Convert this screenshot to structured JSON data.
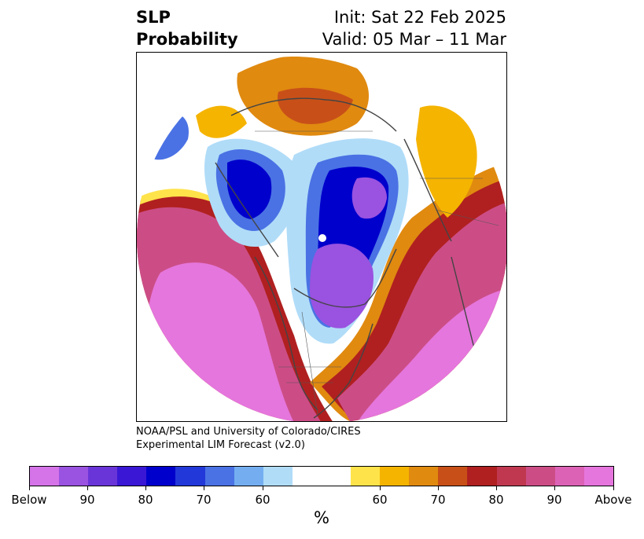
{
  "header": {
    "title_line1": "SLP",
    "title_line2": "Probability",
    "init": "Init: Sat 22 Feb 2025",
    "valid": "Valid: 05 Mar – 11 Mar"
  },
  "credit": {
    "line1": "NOAA/PSL and University of Colorado/CIRES",
    "line2": "Experimental LIM Forecast (v2.0)"
  },
  "colorbar": {
    "unit": "%",
    "colors": [
      "#d573e8",
      "#9a52e0",
      "#6a35d8",
      "#3a17d5",
      "#0000cc",
      "#2338d8",
      "#4a72e4",
      "#74aef0",
      "#b0dcf8",
      "#ffffff",
      "#ffe34a",
      "#f5b400",
      "#e08a10",
      "#c85018",
      "#b02020",
      "#c03850",
      "#cc4d86",
      "#dc62b6",
      "#e576dd"
    ],
    "tick_labels": [
      "Below",
      "90",
      "80",
      "70",
      "60",
      "60",
      "70",
      "80",
      "90",
      "Above"
    ]
  },
  "map": {
    "projection": "north-polar-stereographic",
    "colors": {
      "above_high": "#e576dd",
      "above_mid": "#cc4d86",
      "above_red": "#b02020",
      "above_orange": "#e08a10",
      "above_yellow": "#ffe34a",
      "below_light": "#b0dcf8",
      "below_mid": "#4a72e4",
      "below_dark": "#0000cc",
      "below_purple": "#9a52e0",
      "coast": "#444444"
    }
  }
}
